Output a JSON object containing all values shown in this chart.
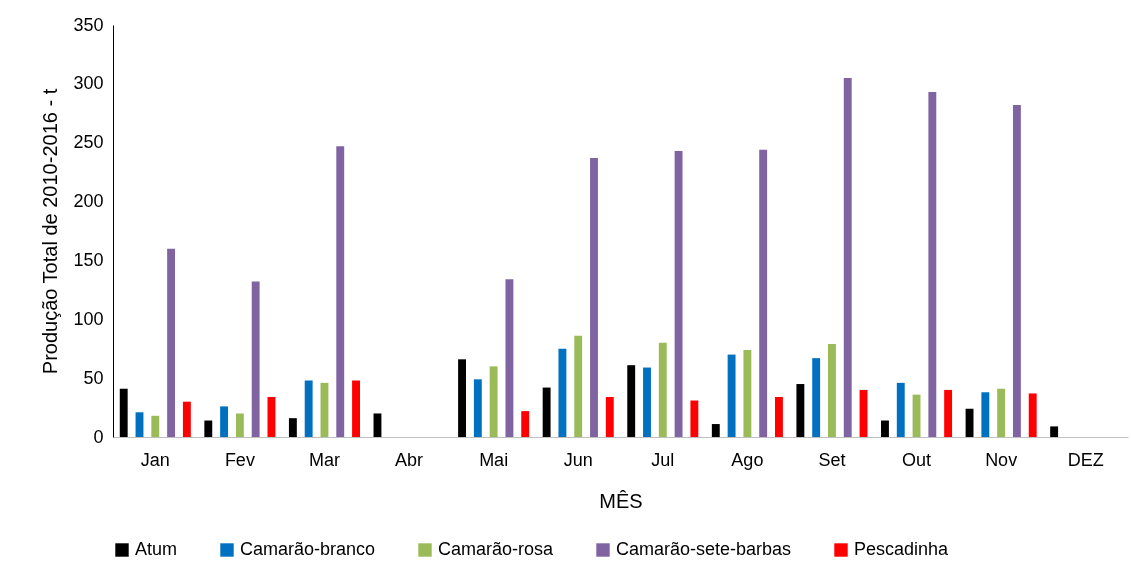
{
  "chart_data": {
    "type": "bar",
    "xlabel": "MÊS",
    "ylabel": "Produção Total de 2010-2016 - t",
    "categories": [
      "Jan",
      "Fev",
      "Mar",
      "Abr",
      "Mai",
      "Jun",
      "Jul",
      "Ago",
      "Set",
      "Out",
      "Nov",
      "DEZ"
    ],
    "series": [
      {
        "name": "Atum",
        "color": "#000000",
        "values": [
          41,
          14,
          16,
          20,
          66,
          42,
          61,
          11,
          45,
          14,
          24,
          9
        ]
      },
      {
        "name": "Camarão-branco",
        "color": "#0070c0",
        "values": [
          21,
          26,
          48,
          null,
          49,
          75,
          59,
          70,
          67,
          46,
          38,
          null
        ]
      },
      {
        "name": "Camarão-rosa",
        "color": "#9bbb59",
        "values": [
          18,
          20,
          46,
          null,
          60,
          86,
          80,
          74,
          79,
          36,
          41,
          null
        ]
      },
      {
        "name": "Camarão-sete-barbas",
        "color": "#8064a2",
        "values": [
          160,
          132,
          247,
          null,
          134,
          237,
          243,
          244,
          305,
          293,
          282,
          null
        ]
      },
      {
        "name": "Pescadinha",
        "color": "#ff0000",
        "values": [
          30,
          34,
          48,
          null,
          22,
          34,
          31,
          34,
          40,
          40,
          37,
          null
        ]
      }
    ],
    "ylim": [
      0,
      350
    ],
    "yticks": [
      0,
      50,
      100,
      150,
      200,
      250,
      300,
      350
    ],
    "grid": false,
    "legend": "bottom"
  }
}
